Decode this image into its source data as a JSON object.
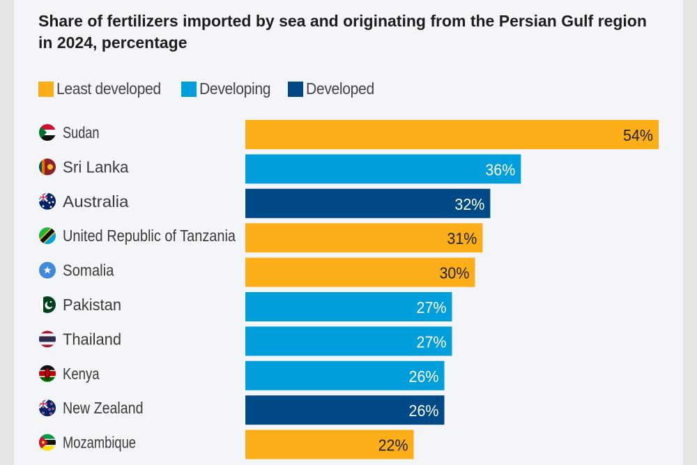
{
  "title": "Share of fertilizers imported by sea and originating from the Persian Gulf region in 2024, percentage",
  "legend": [
    {
      "label": "Least developed",
      "color": "#fbae17"
    },
    {
      "label": "Developing",
      "color": "#009edb"
    },
    {
      "label": "Developed",
      "color": "#004987"
    }
  ],
  "chart_data": {
    "type": "bar",
    "orientation": "horizontal",
    "title": "Share of fertilizers imported by sea and originating from the Persian Gulf region in 2024, percentage",
    "categories": [
      "Sudan",
      "Sri Lanka",
      "Australia",
      "United Republic of Tanzania",
      "Somalia",
      "Pakistan",
      "Thailand",
      "Kenya",
      "New Zealand",
      "Mozambique"
    ],
    "values": [
      54,
      36,
      32,
      31,
      30,
      27,
      27,
      26,
      26,
      22
    ],
    "labels": [
      "54%",
      "36%",
      "32%",
      "31%",
      "30%",
      "27%",
      "27%",
      "26%",
      "26%",
      "22%"
    ],
    "groups": [
      "Least developed",
      "Developing",
      "Developed",
      "Least developed",
      "Least developed",
      "Developing",
      "Developing",
      "Developing",
      "Developed",
      "Least developed"
    ],
    "flag_icons": [
      "flag-sudan-icon",
      "flag-sri-lanka-icon",
      "flag-australia-icon",
      "flag-tanzania-icon",
      "flag-somalia-icon",
      "flag-pakistan-icon",
      "flag-thailand-icon",
      "flag-kenya-icon",
      "flag-new-zealand-icon",
      "flag-mozambique-icon"
    ],
    "group_colors": {
      "Least developed": "#fbae17",
      "Developing": "#009edb",
      "Developed": "#004987"
    },
    "label_colors": {
      "Least developed": "#222222",
      "Developing": "#ffffff",
      "Developed": "#ffffff"
    },
    "xlim": [
      0,
      54
    ],
    "grid": false,
    "legend_position": "top-left"
  }
}
